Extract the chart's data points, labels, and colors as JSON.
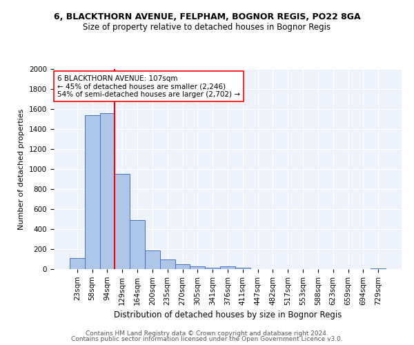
{
  "title1": "6, BLACKTHORN AVENUE, FELPHAM, BOGNOR REGIS, PO22 8GA",
  "title2": "Size of property relative to detached houses in Bognor Regis",
  "xlabel": "Distribution of detached houses by size in Bognor Regis",
  "ylabel": "Number of detached properties",
  "footer1": "Contains HM Land Registry data © Crown copyright and database right 2024.",
  "footer2": "Contains public sector information licensed under the Open Government Licence v3.0.",
  "annotation_line1": "6 BLACKTHORN AVENUE: 107sqm",
  "annotation_line2": "← 45% of detached houses are smaller (2,246)",
  "annotation_line3": "54% of semi-detached houses are larger (2,702) →",
  "categories": [
    "23sqm",
    "58sqm",
    "94sqm",
    "129sqm",
    "164sqm",
    "200sqm",
    "235sqm",
    "270sqm",
    "305sqm",
    "341sqm",
    "376sqm",
    "411sqm",
    "447sqm",
    "482sqm",
    "517sqm",
    "553sqm",
    "588sqm",
    "623sqm",
    "659sqm",
    "694sqm",
    "729sqm"
  ],
  "values": [
    110,
    1540,
    1560,
    950,
    490,
    185,
    100,
    45,
    25,
    15,
    30,
    15,
    0,
    0,
    0,
    0,
    0,
    0,
    0,
    0,
    10
  ],
  "bar_color": "#aec6e8",
  "bar_edge_color": "#4472c4",
  "red_line_x": 2.5,
  "background_color": "#eef2fb",
  "ylim": [
    0,
    2000
  ],
  "yticks": [
    0,
    200,
    400,
    600,
    800,
    1000,
    1200,
    1400,
    1600,
    1800,
    2000
  ],
  "title1_fontsize": 9,
  "title2_fontsize": 8.5,
  "ylabel_fontsize": 8,
  "xlabel_fontsize": 8.5,
  "tick_fontsize": 7.5,
  "footer_fontsize": 6.5,
  "ann_fontsize": 7.5
}
